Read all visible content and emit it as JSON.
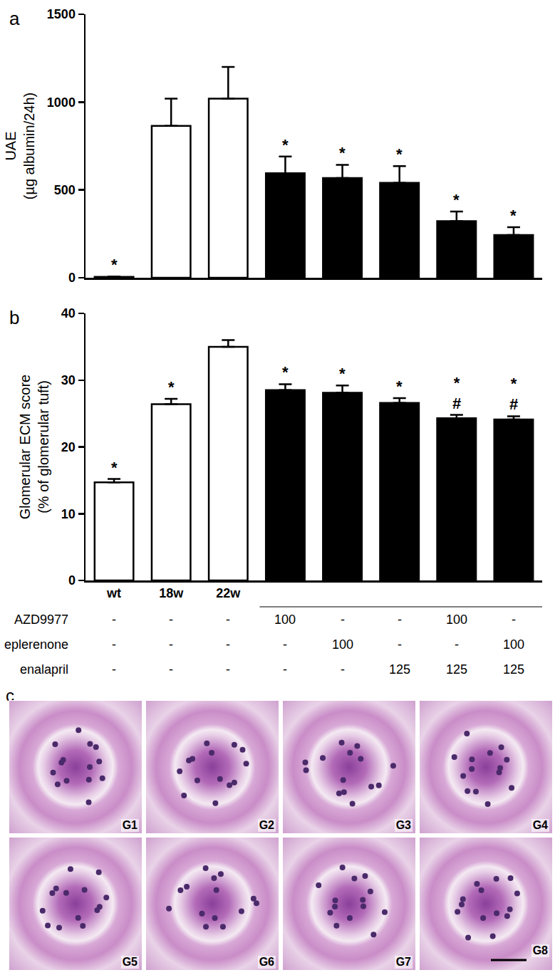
{
  "chart_data": [
    {
      "type": "bar",
      "title": "a",
      "categories": [
        null,
        null,
        null,
        null,
        null,
        null,
        null,
        null
      ],
      "values": [
        5,
        865,
        1020,
        595,
        568,
        540,
        322,
        243
      ],
      "errors": [
        2,
        155,
        180,
        95,
        75,
        95,
        55,
        45
      ],
      "marks": [
        [
          "*"
        ],
        null,
        null,
        [
          "*"
        ],
        [
          "*"
        ],
        [
          "*"
        ],
        [
          "*"
        ],
        [
          "*"
        ]
      ],
      "colors": [
        "#ffffff",
        "#ffffff",
        "#ffffff",
        "#000000",
        "#000000",
        "#000000",
        "#000000",
        "#000000"
      ],
      "ylabel": [
        "UAE",
        "(µg albumin/24h)"
      ],
      "ylim": [
        0,
        1500
      ],
      "yticks": [
        0,
        500,
        1000,
        1500
      ],
      "grid": false,
      "tick_labels": "y"
    },
    {
      "type": "bar",
      "title": "b",
      "categories": [
        "wt",
        "18w",
        "22w",
        null,
        null,
        null,
        null,
        null
      ],
      "values": [
        14.7,
        26.4,
        35.0,
        28.5,
        28.1,
        26.6,
        24.3,
        24.1
      ],
      "errors": [
        0.5,
        0.8,
        1.0,
        0.9,
        1.1,
        0.7,
        0.5,
        0.5
      ],
      "marks": [
        [
          "*"
        ],
        [
          "*"
        ],
        null,
        [
          "*"
        ],
        [
          "*"
        ],
        [
          "*"
        ],
        [
          "*",
          "#"
        ],
        [
          "*",
          "#"
        ]
      ],
      "colors": [
        "#ffffff",
        "#ffffff",
        "#ffffff",
        "#000000",
        "#000000",
        "#000000",
        "#000000",
        "#000000"
      ],
      "ylabel": [
        "Glomerular ECM score",
        "(% of glomerular tuft)"
      ],
      "ylim": [
        0,
        40
      ],
      "yticks": [
        0,
        10,
        20,
        30,
        40
      ],
      "grid": false
    }
  ],
  "treatment_table": {
    "rows": [
      {
        "label": "AZD9977",
        "values": [
          "-",
          "-",
          "-",
          "100",
          "-",
          "-",
          "100",
          "-"
        ]
      },
      {
        "label": "eplerenone",
        "values": [
          "-",
          "-",
          "-",
          "-",
          "100",
          "-",
          "-",
          "100"
        ]
      },
      {
        "label": "enalapril",
        "values": [
          "-",
          "-",
          "-",
          "-",
          "-",
          "125",
          "125",
          "125"
        ]
      }
    ]
  },
  "images": {
    "title": "c",
    "labels": [
      "G1",
      "G2",
      "G3",
      "G4",
      "G5",
      "G6",
      "G7",
      "G8"
    ]
  }
}
